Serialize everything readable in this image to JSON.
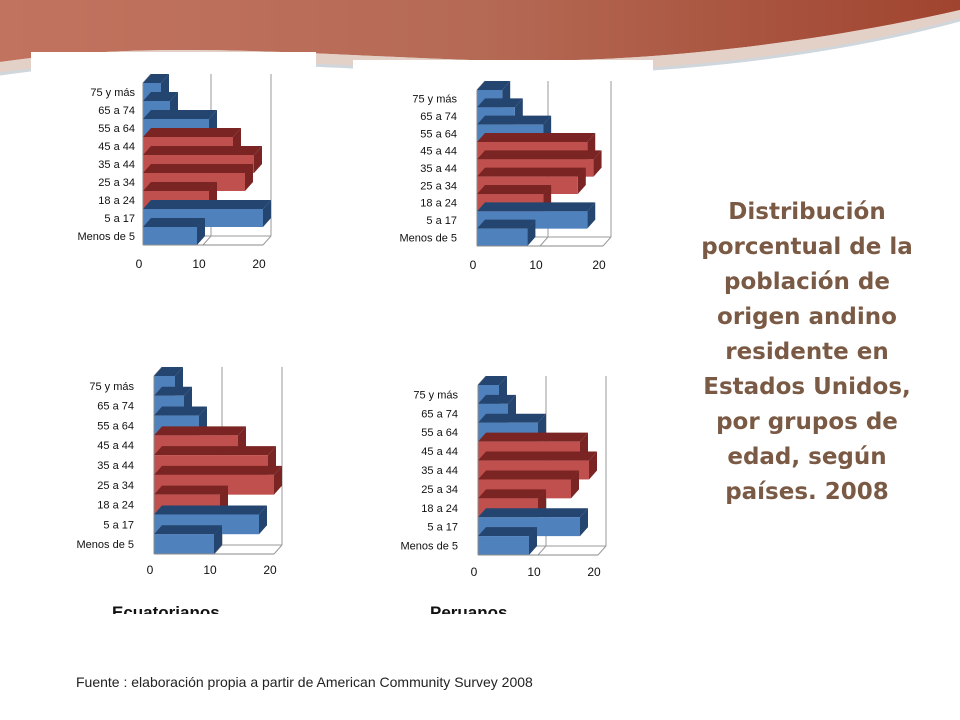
{
  "colors": {
    "blue": "#4f81bd",
    "blue_dark": "#24456f",
    "red": "#c0504d",
    "red_dark": "#7a2523",
    "title": "#7a5a44",
    "banner": "#b35e4a"
  },
  "title": "Distribución porcentual de la población de origen andino residente en Estados Unidos, por grupos de edad, según países. 2008",
  "source": "Fuente : elaboración propia a partir de American Community Survey 2008",
  "cut_labels": [
    "Ecuatorianos",
    "Peruanos"
  ],
  "chart_data": [
    {
      "type": "bar",
      "orientation": "horizontal",
      "categories": [
        "75 y más",
        "65 a 74",
        "55 a 64",
        "45 a 44",
        "35 a 44",
        "25 a 34",
        "18 a 24",
        "5 a 17",
        "Menos de 5"
      ],
      "values": [
        3,
        4.5,
        11,
        15,
        18.5,
        17,
        11,
        20,
        9
      ],
      "highlight": [
        false,
        false,
        false,
        true,
        true,
        true,
        true,
        false,
        false
      ],
      "xticks": [
        "0",
        "10",
        "20"
      ],
      "xlim": [
        0,
        20
      ]
    },
    {
      "type": "bar",
      "orientation": "horizontal",
      "categories": [
        "75 y más",
        "65 a 74",
        "55 a 64",
        "45 a 44",
        "35 a 44",
        "25 a 34",
        "18 a 24",
        "5 a 17",
        "Menos de 5"
      ],
      "values": [
        4,
        6,
        10.5,
        17.5,
        18.5,
        16,
        10.5,
        17.5,
        8
      ],
      "highlight": [
        false,
        false,
        false,
        true,
        true,
        true,
        true,
        false,
        false
      ],
      "xticks": [
        "0",
        "10",
        "20"
      ],
      "xlim": [
        0,
        20
      ]
    },
    {
      "type": "bar",
      "orientation": "horizontal",
      "categories": [
        "75 y más",
        "65 a 74",
        "55 a 64",
        "45 a 44",
        "35 a 44",
        "25 a 34",
        "18 a 24",
        "5 a 17",
        "Menos de 5"
      ],
      "values": [
        3.5,
        5,
        7.5,
        14,
        19,
        20,
        11,
        17.5,
        10
      ],
      "highlight": [
        false,
        false,
        false,
        true,
        true,
        true,
        true,
        false,
        false
      ],
      "xticks": [
        "0",
        "10",
        "20"
      ],
      "xlim": [
        0,
        20
      ]
    },
    {
      "type": "bar",
      "orientation": "horizontal",
      "categories": [
        "75 y más",
        "65 a 74",
        "55 a 64",
        "45 a 44",
        "35 a 44",
        "25 a 34",
        "18 a 24",
        "5 a 17",
        "Menos de 5"
      ],
      "values": [
        3.5,
        5,
        10,
        17,
        18.5,
        15.5,
        10,
        17,
        8.5
      ],
      "highlight": [
        false,
        false,
        false,
        true,
        true,
        true,
        true,
        false,
        false
      ],
      "xticks": [
        "0",
        "10",
        "20"
      ],
      "xlim": [
        0,
        20
      ]
    }
  ]
}
